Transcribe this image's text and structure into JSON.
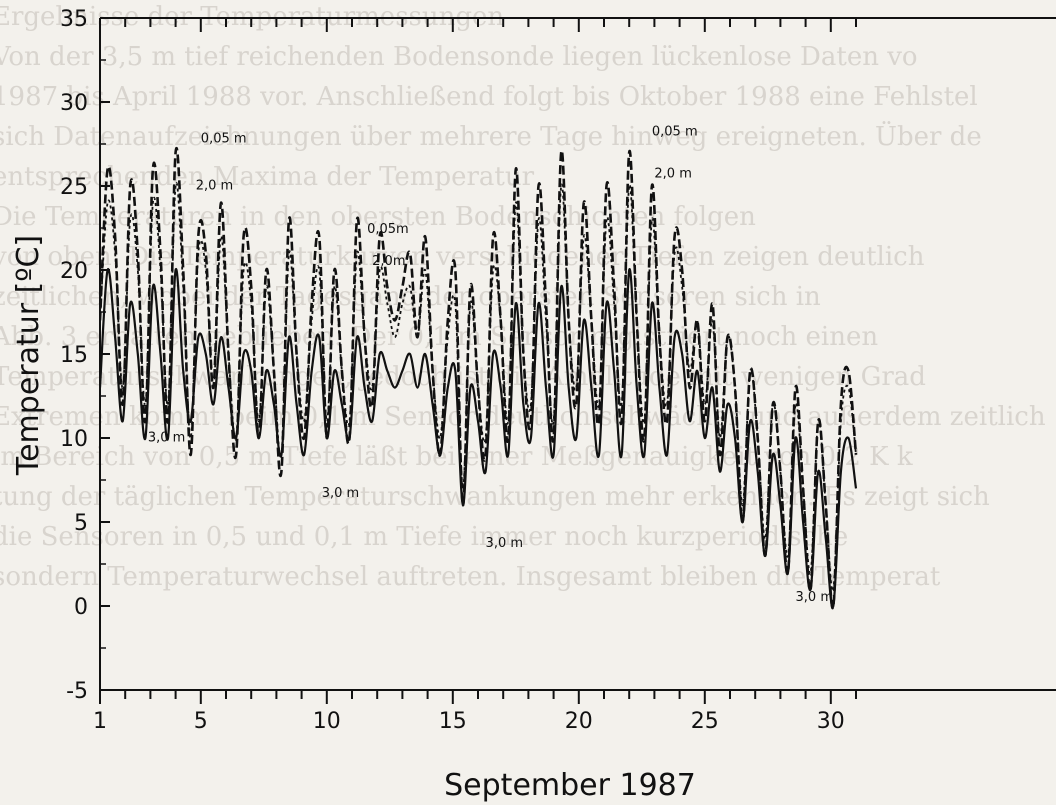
{
  "background_text": [
    "Ergebnisse der Temperaturmessungen",
    "Von der 3,5 m tief reichenden Bodensonde liegen lückenlose Daten vo",
    "1987 bis April 1988 vor. Anschließend folgt bis Oktober 1988 eine Fehlstel",
    "sich Datenaufzeichnungen über mehrere Tage hinweg ereigneten. Über de",
    "entsprechenden Maxima der Temperatur",
    "Die Temperaturen in den obersten Bodenschichten folgen",
    "von oben. Die Temperaturkurven verschiedener Tiefen zeigen deutlich",
    "zeitlichen, wobei der Tagesgang der obersten Sensoren sich in",
    "Abb. 3 erhalten geblieben. Der 0,1 m Sensor registriert noch einen",
    "Temperaturschwankungen, jedoch ist die Amplitude mit wenigen Grad",
    "Extremen kommt beim 0,1 m Sensor deutlich schwächer und außerdem zeitlich",
    "im Bereich von 0,5 m Tiefe läßt bei einer Meßgenauigkeit von 0,2 K k",
    "tung der täglichen Temperaturschwankungen mehr erkennen. Es zeigt sich",
    "die Sensoren in 0,5 und 0,1 m Tiefe immer noch kurzperiodische",
    "sondern Temperaturwechsel auftreten. Insgesamt bleiben die Temperat"
  ],
  "chart_data": {
    "type": "line",
    "title": "",
    "xlabel": "September 1987",
    "ylabel": "Temperatur [ºC]",
    "xlim": [
      1,
      31
    ],
    "ylim": [
      -5,
      35
    ],
    "x_tick_labels": [
      "1",
      "5",
      "10",
      "15",
      "20",
      "25",
      "30"
    ],
    "y_tick_labels": [
      "-5",
      "0",
      "5",
      "10",
      "15",
      "20",
      "25",
      "30",
      "35"
    ],
    "series": [
      {
        "name": "0,05 m",
        "style": "dashed",
        "x": [
          1.0,
          1.3,
          1.6,
          1.9,
          2.2,
          2.5,
          2.8,
          3.1,
          3.4,
          3.7,
          4.0,
          4.3,
          4.6,
          4.9,
          5.2,
          5.5,
          5.8,
          6.1,
          6.4,
          6.7,
          7.0,
          7.3,
          7.6,
          7.9,
          8.2,
          8.5,
          8.8,
          9.1,
          9.4,
          9.7,
          10.0,
          10.3,
          10.6,
          10.9,
          11.2,
          11.5,
          11.8,
          12.1,
          12.4,
          12.7,
          13.0,
          13.3,
          13.6,
          13.9,
          14.2,
          14.5,
          14.8,
          15.1,
          15.4,
          15.7,
          16.0,
          16.3,
          16.6,
          16.9,
          17.2,
          17.5,
          17.8,
          18.1,
          18.4,
          18.7,
          19.0,
          19.3,
          19.6,
          19.9,
          20.2,
          20.5,
          20.8,
          21.1,
          21.4,
          21.7,
          22.0,
          22.3,
          22.6,
          22.9,
          23.2,
          23.5,
          23.8,
          24.1,
          24.4,
          24.7,
          25.0,
          25.3,
          25.6,
          25.9,
          26.2,
          26.5,
          26.8,
          27.1,
          27.4,
          27.7,
          28.0,
          28.3,
          28.6,
          28.9,
          29.2,
          29.5,
          29.8,
          30.1,
          30.4,
          30.7,
          31.0
        ],
        "y": [
          17,
          26,
          22,
          12,
          25,
          21,
          11,
          26,
          21,
          11,
          27,
          20,
          9,
          22,
          21,
          13,
          24,
          15,
          9,
          22,
          19,
          10,
          20,
          14,
          8,
          23,
          15,
          10,
          18,
          22,
          10,
          20,
          14,
          10,
          23,
          16,
          12,
          22,
          19,
          17,
          19,
          21,
          16,
          22,
          14,
          9,
          17,
          20,
          6,
          19,
          13,
          9,
          22,
          17,
          10,
          26,
          15,
          11,
          25,
          18,
          10,
          27,
          17,
          12,
          24,
          17,
          11,
          25,
          19,
          11,
          27,
          17,
          10,
          25,
          16,
          11,
          22,
          20,
          13,
          17,
          11,
          18,
          9,
          16,
          13,
          5,
          14,
          10,
          3,
          12,
          8,
          2,
          13,
          7,
          1,
          11,
          6,
          0,
          12,
          14,
          9
        ]
      },
      {
        "name": "2,0 m",
        "style": "dotted",
        "x": [
          1.0,
          1.3,
          1.6,
          1.9,
          2.2,
          2.5,
          2.8,
          3.1,
          3.4,
          3.7,
          4.0,
          4.3,
          4.6,
          4.9,
          5.2,
          5.5,
          5.8,
          6.1,
          6.4,
          6.7,
          7.0,
          7.3,
          7.6,
          7.9,
          8.2,
          8.5,
          8.8,
          9.1,
          9.4,
          9.7,
          10.0,
          10.3,
          10.6,
          10.9,
          11.2,
          11.5,
          11.8,
          12.1,
          12.4,
          12.7,
          13.0,
          13.3,
          13.6,
          13.9,
          14.2,
          14.5,
          14.8,
          15.1,
          15.4,
          15.7,
          16.0,
          16.3,
          16.6,
          16.9,
          17.2,
          17.5,
          17.8,
          18.1,
          18.4,
          18.7,
          19.0,
          19.3,
          19.6,
          19.9,
          20.2,
          20.5,
          20.8,
          21.1,
          21.4,
          21.7,
          22.0,
          22.3,
          22.6,
          22.9,
          23.2,
          23.5,
          23.8,
          24.1,
          24.4,
          24.7,
          25.0,
          25.3,
          25.6,
          25.9,
          26.2,
          26.5,
          26.8,
          27.1,
          27.4,
          27.7,
          28.0,
          28.3,
          28.6,
          28.9,
          29.2,
          29.5,
          29.8,
          30.1,
          30.4,
          30.7,
          31.0
        ],
        "y": [
          17,
          24,
          21,
          13,
          23,
          20,
          12,
          24,
          20,
          12,
          25,
          19,
          10,
          21,
          20,
          13,
          22,
          15,
          10,
          20,
          18,
          11,
          19,
          14,
          9,
          21,
          15,
          11,
          17,
          20,
          11,
          19,
          14,
          11,
          21,
          16,
          13,
          20,
          18,
          16,
          18,
          19,
          16,
          20,
          14,
          10,
          16,
          18,
          7,
          18,
          13,
          10,
          20,
          17,
          11,
          24,
          15,
          12,
          23,
          17,
          11,
          25,
          17,
          13,
          22,
          17,
          12,
          23,
          18,
          12,
          25,
          17,
          11,
          23,
          16,
          12,
          21,
          19,
          14,
          17,
          12,
          17,
          10,
          16,
          13,
          6,
          14,
          10,
          4,
          12,
          8,
          3,
          12,
          7,
          2,
          11,
          6,
          1,
          11,
          13,
          9
        ]
      },
      {
        "name": "3,0 m",
        "style": "solid",
        "x": [
          1.0,
          1.3,
          1.6,
          1.9,
          2.2,
          2.5,
          2.8,
          3.1,
          3.4,
          3.7,
          4.0,
          4.3,
          4.6,
          4.9,
          5.2,
          5.5,
          5.8,
          6.1,
          6.4,
          6.7,
          7.0,
          7.3,
          7.6,
          7.9,
          8.2,
          8.5,
          8.8,
          9.1,
          9.4,
          9.7,
          10.0,
          10.3,
          10.6,
          10.9,
          11.2,
          11.5,
          11.8,
          12.1,
          12.4,
          12.7,
          13.0,
          13.3,
          13.6,
          13.9,
          14.2,
          14.5,
          14.8,
          15.1,
          15.4,
          15.7,
          16.0,
          16.3,
          16.6,
          16.9,
          17.2,
          17.5,
          17.8,
          18.1,
          18.4,
          18.7,
          19.0,
          19.3,
          19.6,
          19.9,
          20.2,
          20.5,
          20.8,
          21.1,
          21.4,
          21.7,
          22.0,
          22.3,
          22.6,
          22.9,
          23.2,
          23.5,
          23.8,
          24.1,
          24.4,
          24.7,
          25.0,
          25.3,
          25.6,
          25.9,
          26.2,
          26.5,
          26.8,
          27.1,
          27.4,
          27.7,
          28.0,
          28.3,
          28.6,
          28.9,
          29.2,
          29.5,
          29.8,
          30.1,
          30.4,
          30.7,
          31.0
        ],
        "y": [
          13,
          20,
          16,
          11,
          18,
          15,
          10,
          19,
          15,
          10,
          20,
          14,
          11,
          16,
          15,
          12,
          16,
          13,
          10,
          15,
          14,
          10,
          14,
          12,
          9,
          16,
          12,
          9,
          14,
          16,
          10,
          14,
          12,
          10,
          16,
          13,
          11,
          15,
          14,
          13,
          14,
          15,
          13,
          15,
          12,
          9,
          13,
          14,
          6,
          13,
          11,
          8,
          15,
          13,
          9,
          18,
          12,
          10,
          18,
          13,
          9,
          19,
          13,
          10,
          17,
          13,
          9,
          18,
          14,
          9,
          20,
          13,
          9,
          18,
          13,
          9,
          16,
          15,
          11,
          14,
          10,
          13,
          8,
          12,
          10,
          5,
          11,
          8,
          3,
          9,
          6,
          2,
          10,
          5,
          1,
          8,
          4,
          0,
          8,
          10,
          7
        ]
      }
    ],
    "annotations": [
      {
        "text": "0,05 m",
        "x": 5.0,
        "y": 27.6
      },
      {
        "text": "2,0 m",
        "x": 4.8,
        "y": 24.8
      },
      {
        "text": "3,0 m",
        "x": 2.9,
        "y": 9.8
      },
      {
        "text": "0,05m",
        "x": 11.6,
        "y": 22.2
      },
      {
        "text": "2,0m",
        "x": 11.8,
        "y": 20.3
      },
      {
        "text": "3,0 m",
        "x": 9.8,
        "y": 6.5
      },
      {
        "text": "3,0 m",
        "x": 16.3,
        "y": 3.5
      },
      {
        "text": "0,05 m",
        "x": 22.9,
        "y": 28.0
      },
      {
        "text": "2,0 m",
        "x": 23.0,
        "y": 25.5
      },
      {
        "text": "3,0 m",
        "x": 28.6,
        "y": 0.3
      }
    ]
  }
}
